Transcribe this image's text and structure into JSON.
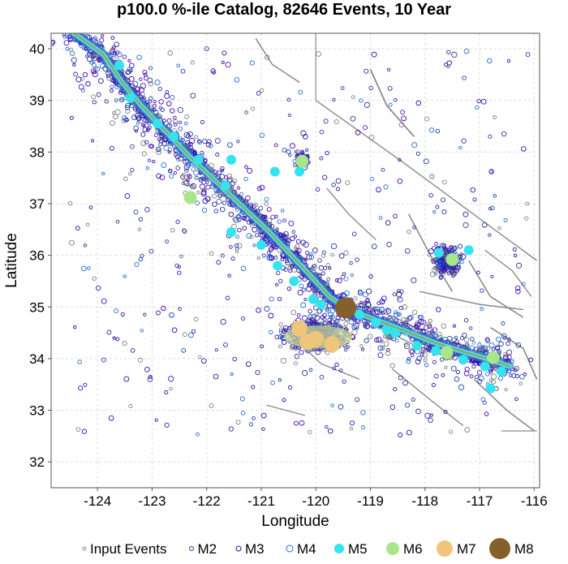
{
  "chart_data": {
    "type": "scatter",
    "title": "p100.0 %-ile Catalog, 82646 Events, 10 Year",
    "xlabel": "Longitude",
    "ylabel": "Latitude",
    "xlim": [
      -124.85,
      -115.9
    ],
    "ylim": [
      31.5,
      40.3
    ],
    "x_ticks": [
      "-124",
      "-123",
      "-122",
      "-121",
      "-120",
      "-119",
      "-118",
      "-117",
      "-116"
    ],
    "y_ticks": [
      "32",
      "33",
      "34",
      "35",
      "36",
      "37",
      "38",
      "39",
      "40"
    ],
    "grid": true,
    "legend_position": "bottom",
    "legend": [
      {
        "label": "Input Events",
        "color": "#808080",
        "fill": false,
        "size": 2
      },
      {
        "label": "M2",
        "color": "#1f3ea8",
        "fill": false,
        "size": 2.5
      },
      {
        "label": "M3",
        "color": "#3a00b0",
        "fill": false,
        "size": 3
      },
      {
        "label": "M4",
        "color": "#1f6fd6",
        "fill": false,
        "size": 4
      },
      {
        "label": "M5",
        "color": "#33e3ee",
        "fill": true,
        "size": 6
      },
      {
        "label": "M6",
        "color": "#a8e68a",
        "fill": true,
        "size": 8
      },
      {
        "label": "M7",
        "color": "#eec57a",
        "fill": true,
        "size": 10
      },
      {
        "label": "M8",
        "color": "#86602a",
        "fill": true,
        "size": 13
      }
    ],
    "series": [
      {
        "name": "M8",
        "points": [
          [
            -119.45,
            34.98
          ]
        ]
      },
      {
        "name": "M7",
        "points": [
          [
            -120.3,
            34.58
          ],
          [
            -120.0,
            34.38
          ],
          [
            -119.7,
            34.28
          ],
          [
            -120.15,
            34.32
          ]
        ]
      },
      {
        "name": "M6",
        "points": [
          [
            -120.25,
            37.82
          ],
          [
            -117.5,
            35.92
          ],
          [
            -122.3,
            37.12
          ],
          [
            -116.75,
            34.02
          ],
          [
            -117.6,
            34.12
          ]
        ]
      },
      {
        "name": "M5",
        "points": [
          [
            -123.6,
            39.68
          ],
          [
            -123.4,
            39.05
          ],
          [
            -122.9,
            38.55
          ],
          [
            -122.6,
            38.3
          ],
          [
            -122.15,
            37.85
          ],
          [
            -121.65,
            37.35
          ],
          [
            -121.55,
            36.45
          ],
          [
            -121.0,
            36.2
          ],
          [
            -120.7,
            35.8
          ],
          [
            -120.4,
            35.5
          ],
          [
            -120.05,
            35.15
          ],
          [
            -119.9,
            35.05
          ],
          [
            -119.2,
            34.85
          ],
          [
            -118.9,
            34.7
          ],
          [
            -118.55,
            34.5
          ],
          [
            -118.15,
            34.25
          ],
          [
            -117.8,
            34.15
          ],
          [
            -117.3,
            33.98
          ],
          [
            -116.9,
            33.85
          ],
          [
            -116.6,
            33.75
          ],
          [
            -118.7,
            34.55
          ],
          [
            -120.3,
            37.62
          ],
          [
            -120.75,
            37.62
          ],
          [
            -121.55,
            37.85
          ],
          [
            -116.8,
            33.42
          ],
          [
            -117.2,
            36.1
          ],
          [
            -117.75,
            36.05
          ]
        ]
      }
    ]
  }
}
